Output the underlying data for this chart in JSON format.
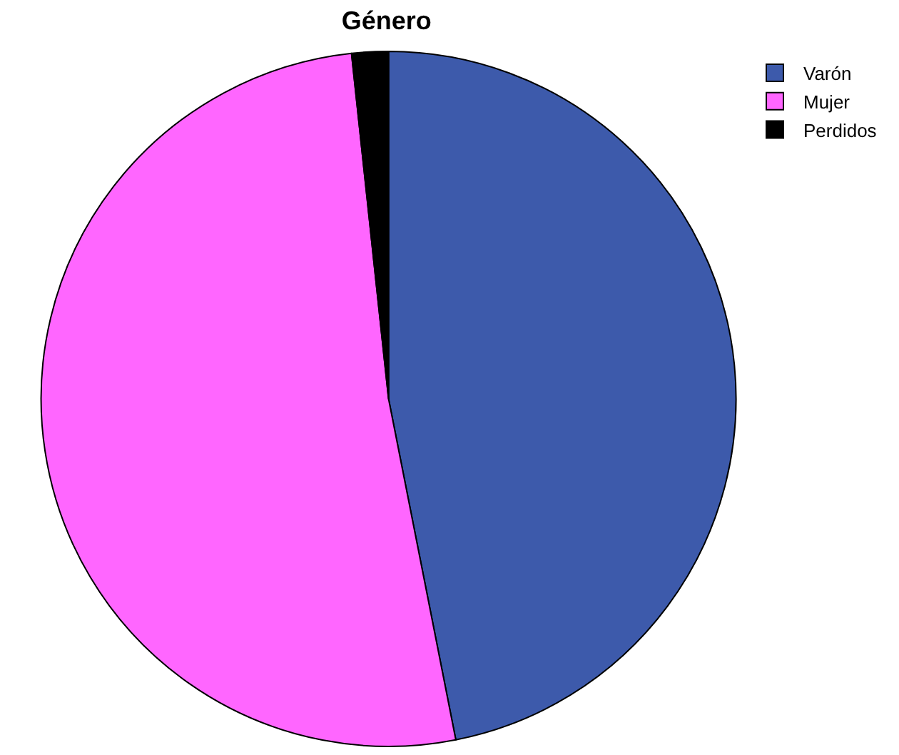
{
  "chart_data": {
    "type": "pie",
    "title": "Género",
    "categories": [
      "Varón",
      "Mujer",
      "Perdidos"
    ],
    "values": [
      46.9,
      51.4,
      1.7
    ],
    "colors": [
      "#3d5aab",
      "#ff66ff",
      "#000000"
    ],
    "legend": "top right"
  }
}
